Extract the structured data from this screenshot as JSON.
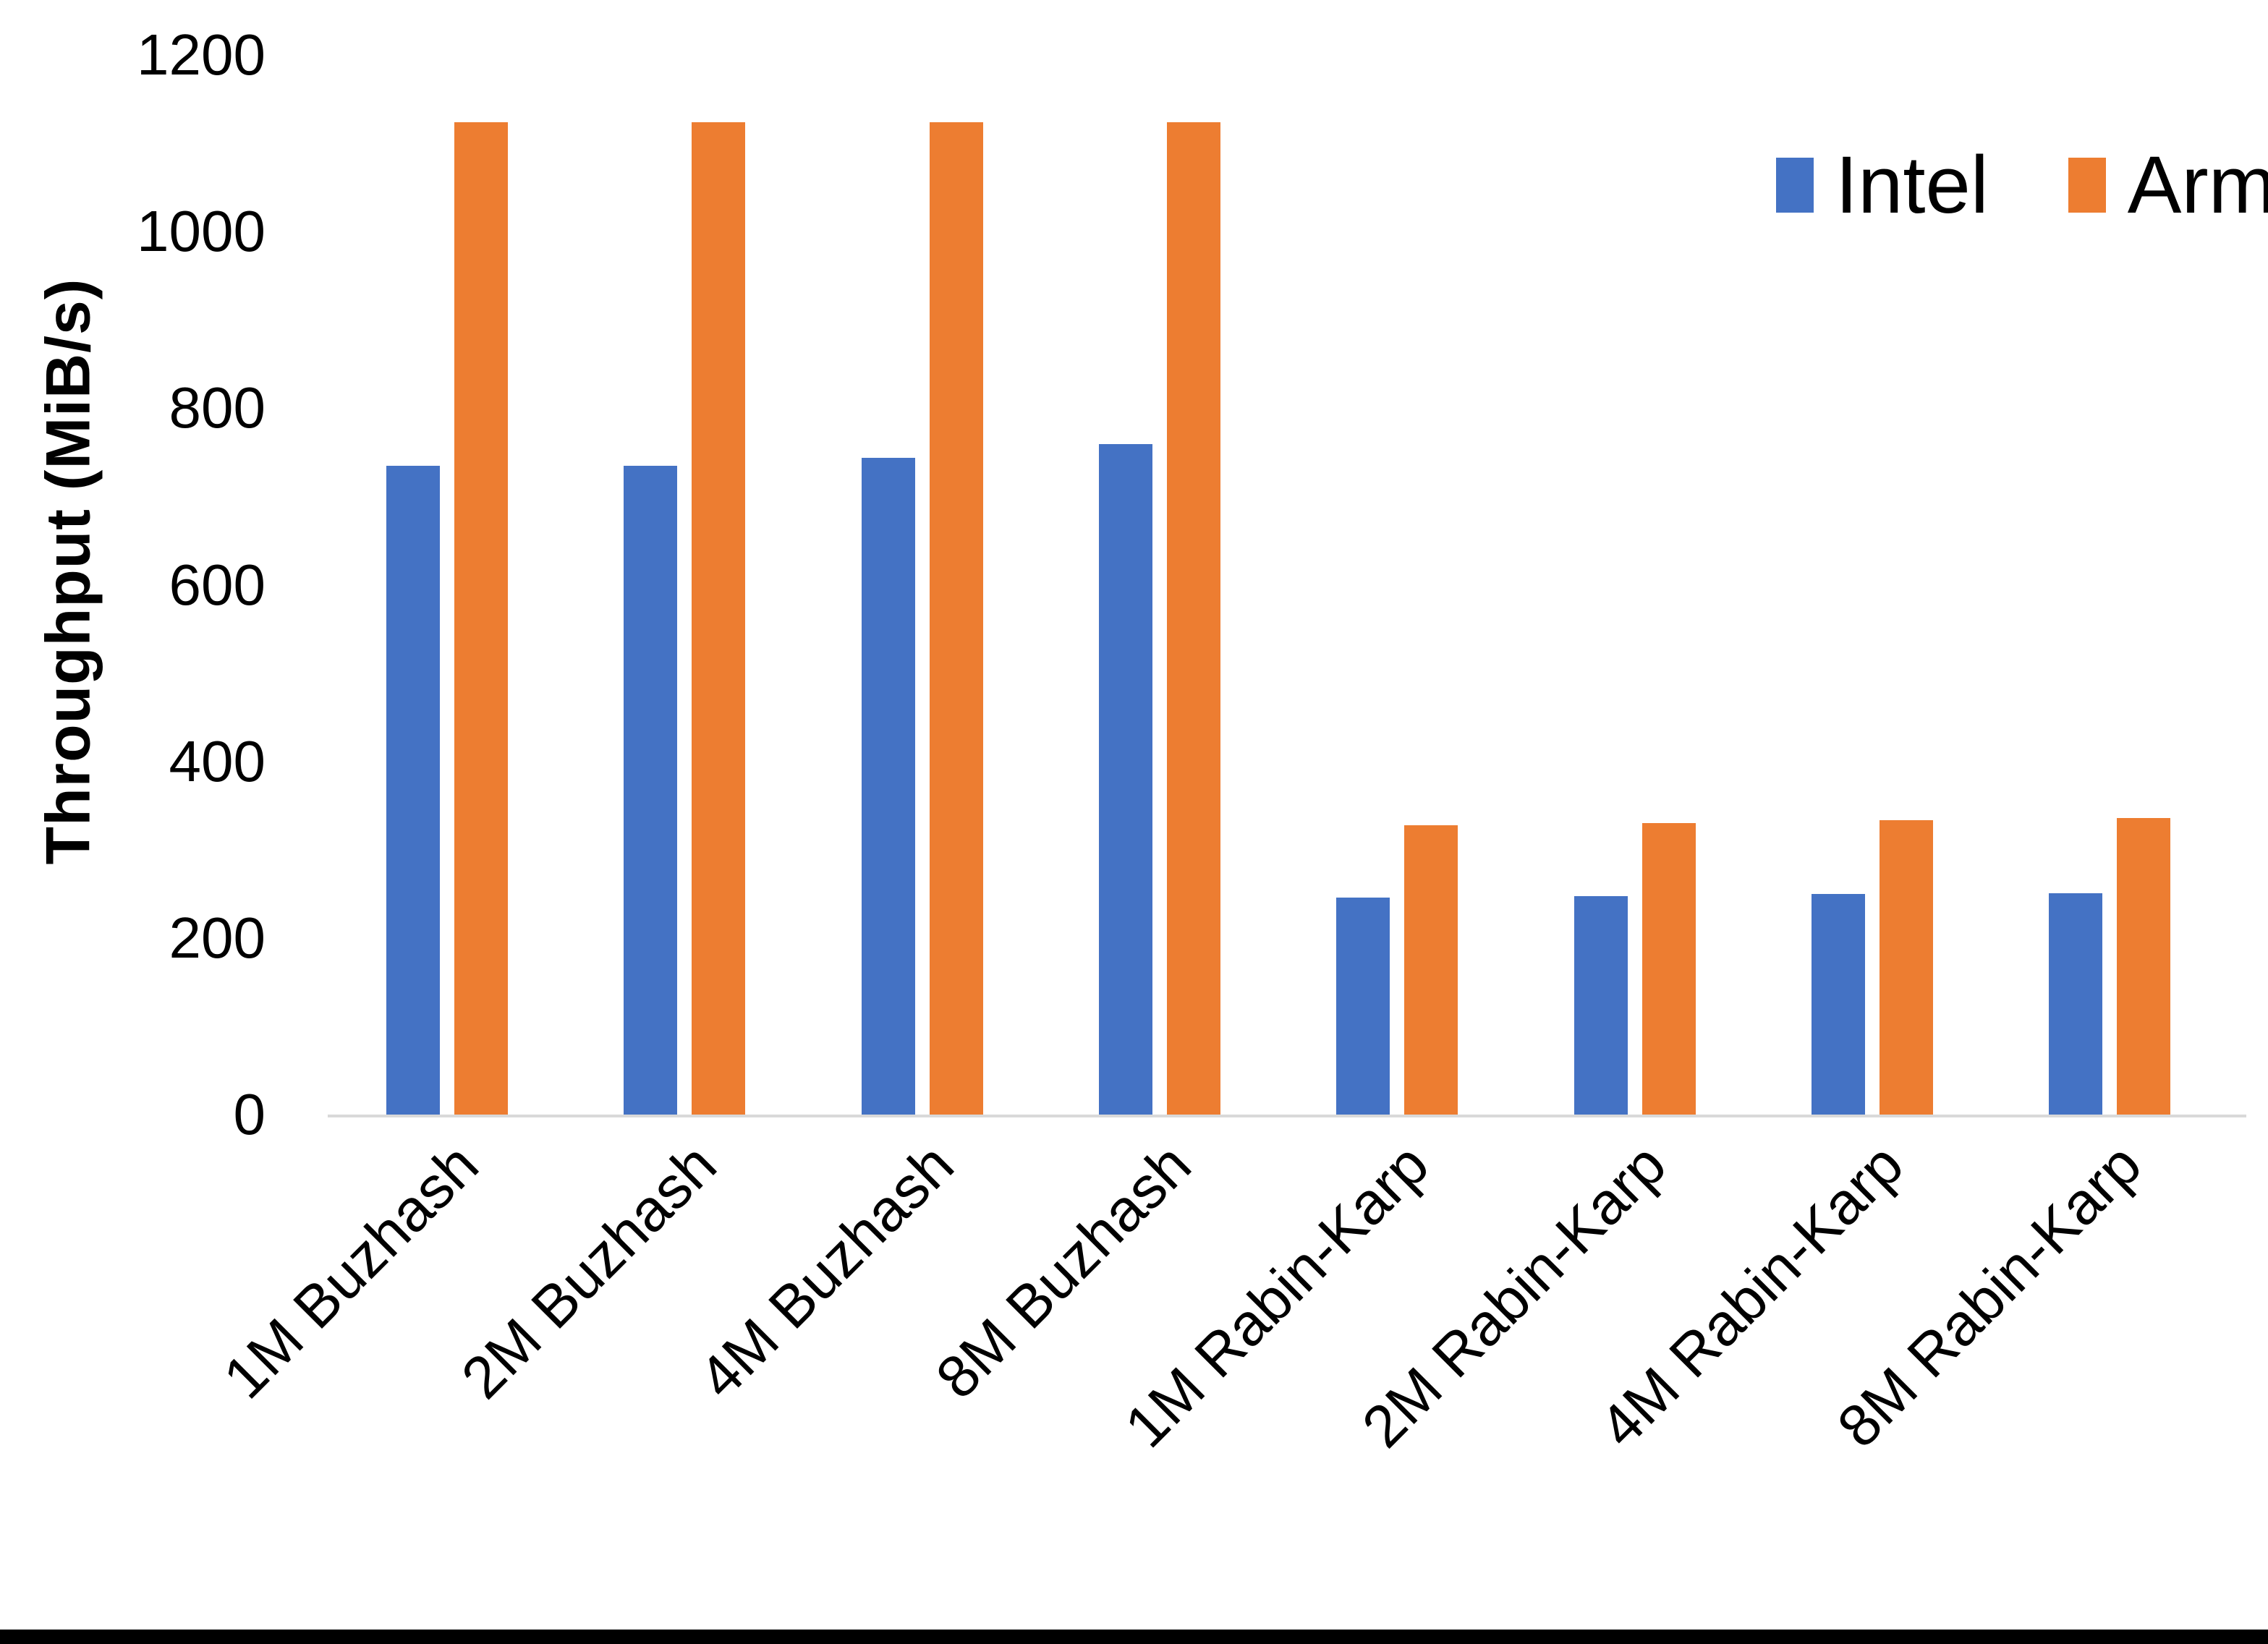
{
  "chart_data": {
    "type": "bar",
    "title": "",
    "xlabel": "",
    "ylabel": "Throughput (MiB/s)",
    "ylim": [
      0,
      1200
    ],
    "yticks": [
      0,
      200,
      400,
      600,
      800,
      1000,
      1200
    ],
    "grid": false,
    "legend_position": "top-right",
    "categories": [
      "1M Buzhash",
      "2M Buzhash",
      "4M Buzhash",
      "8M Buzhash",
      "1M Rabin-Karp",
      "2M Rabin-Karp",
      "4M Rabin-Karp",
      "8M Rabin-Karp"
    ],
    "series": [
      {
        "name": "Intel",
        "color": "#4472C4",
        "values": [
          735,
          735,
          744,
          759,
          246,
          247,
          250,
          251
        ]
      },
      {
        "name": "Arm",
        "color": "#ED7D31",
        "values": [
          1124,
          1124,
          1124,
          1124,
          328,
          330,
          333,
          336
        ]
      }
    ]
  },
  "colors": {
    "background": "#FFFFFF",
    "axis_line": "#D9D9D9",
    "text": "#000000",
    "frame_bottom": "#000000"
  }
}
